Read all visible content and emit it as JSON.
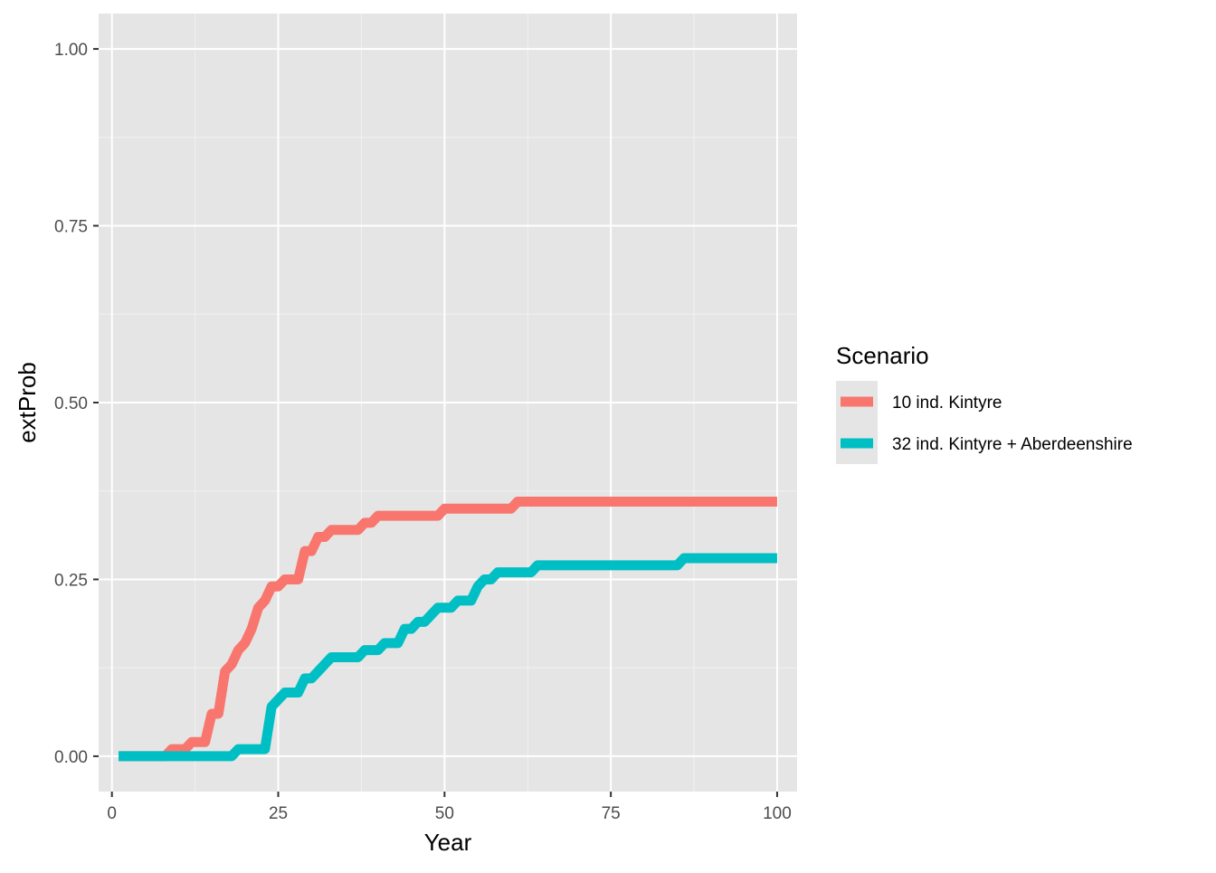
{
  "chart_data": {
    "type": "line",
    "xlabel": "Year",
    "ylabel": "extProb",
    "xlim": [
      -2,
      103
    ],
    "ylim": [
      -0.05,
      1.05
    ],
    "x_ticks": [
      0,
      25,
      50,
      75,
      100
    ],
    "x_tick_labels": [
      "0",
      "25",
      "50",
      "75",
      "100"
    ],
    "y_ticks": [
      0,
      0.25,
      0.5,
      0.75,
      1
    ],
    "y_tick_labels": [
      "0.00",
      "0.25",
      "0.50",
      "0.75",
      "1.00"
    ],
    "grid": true,
    "legend": {
      "title": "Scenario",
      "placement": "right"
    },
    "series": [
      {
        "name": "10 ind. Kintyre",
        "color": "#F8766D",
        "points": [
          [
            1,
            0
          ],
          [
            8,
            0
          ],
          [
            9,
            0.01
          ],
          [
            11,
            0.01
          ],
          [
            12,
            0.02
          ],
          [
            14,
            0.02
          ],
          [
            15,
            0.06
          ],
          [
            16,
            0.06
          ],
          [
            17,
            0.12
          ],
          [
            18,
            0.13
          ],
          [
            19,
            0.15
          ],
          [
            20,
            0.16
          ],
          [
            21,
            0.18
          ],
          [
            22,
            0.21
          ],
          [
            23,
            0.22
          ],
          [
            24,
            0.24
          ],
          [
            25,
            0.24
          ],
          [
            26,
            0.25
          ],
          [
            28,
            0.25
          ],
          [
            29,
            0.29
          ],
          [
            30,
            0.29
          ],
          [
            31,
            0.31
          ],
          [
            32,
            0.31
          ],
          [
            33,
            0.32
          ],
          [
            37,
            0.32
          ],
          [
            38,
            0.33
          ],
          [
            39,
            0.33
          ],
          [
            40,
            0.34
          ],
          [
            49,
            0.34
          ],
          [
            50,
            0.35
          ],
          [
            60,
            0.35
          ],
          [
            61,
            0.36
          ],
          [
            100,
            0.36
          ]
        ]
      },
      {
        "name": "32 ind. Kintyre + Aberdeenshire",
        "color": "#00BFC4",
        "points": [
          [
            1,
            0
          ],
          [
            18,
            0
          ],
          [
            19,
            0.01
          ],
          [
            23,
            0.01
          ],
          [
            24,
            0.07
          ],
          [
            25,
            0.08
          ],
          [
            26,
            0.09
          ],
          [
            28,
            0.09
          ],
          [
            29,
            0.11
          ],
          [
            30,
            0.11
          ],
          [
            31,
            0.12
          ],
          [
            32,
            0.13
          ],
          [
            33,
            0.14
          ],
          [
            37,
            0.14
          ],
          [
            38,
            0.15
          ],
          [
            40,
            0.15
          ],
          [
            41,
            0.16
          ],
          [
            43,
            0.16
          ],
          [
            44,
            0.18
          ],
          [
            45,
            0.18
          ],
          [
            46,
            0.19
          ],
          [
            47,
            0.19
          ],
          [
            48,
            0.2
          ],
          [
            49,
            0.21
          ],
          [
            51,
            0.21
          ],
          [
            52,
            0.22
          ],
          [
            54,
            0.22
          ],
          [
            55,
            0.24
          ],
          [
            56,
            0.25
          ],
          [
            57,
            0.25
          ],
          [
            58,
            0.26
          ],
          [
            63,
            0.26
          ],
          [
            64,
            0.27
          ],
          [
            85,
            0.27
          ],
          [
            86,
            0.28
          ],
          [
            100,
            0.28
          ]
        ]
      }
    ]
  }
}
